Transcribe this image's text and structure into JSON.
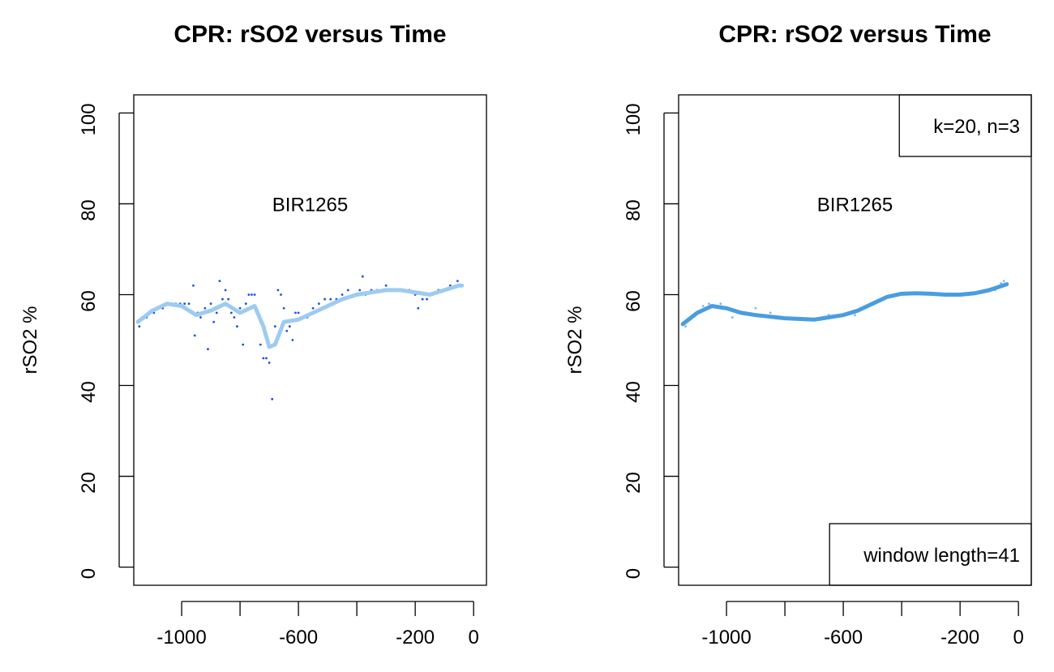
{
  "chart_data": [
    {
      "type": "line",
      "title": "CPR: rSO2 versus Time",
      "ylabel": "rSO2 %",
      "label": "BIR1265",
      "xlim": [
        -1164,
        44
      ],
      "ylim": [
        -4,
        104
      ],
      "xticks": [
        {
          "value": -1000,
          "label": "-1000"
        },
        {
          "value": -800,
          "label": null
        },
        {
          "value": -600,
          "label": "-600"
        },
        {
          "value": -400,
          "label": null
        },
        {
          "value": -200,
          "label": "-200"
        },
        0
      ],
      "yticks": [
        0,
        20,
        40,
        60,
        80,
        100
      ],
      "series": [
        {
          "style": "points",
          "color": "#1f4fe0",
          "x": [
            -1150,
            -1145,
            -1135,
            -1120,
            -1110,
            -1095,
            -1080,
            -1065,
            -1050,
            -1035,
            -1020,
            -1005,
            -990,
            -975,
            -960,
            -955,
            -945,
            -935,
            -920,
            -910,
            -900,
            -890,
            -880,
            -870,
            -860,
            -850,
            -840,
            -830,
            -820,
            -810,
            -800,
            -790,
            -780,
            -770,
            -760,
            -750,
            -740,
            -730,
            -720,
            -710,
            -700,
            -690,
            -680,
            -670,
            -660,
            -650,
            -640,
            -630,
            -620,
            -610,
            -600,
            -590,
            -570,
            -550,
            -530,
            -510,
            -490,
            -470,
            -450,
            -430,
            -410,
            -390,
            -380,
            -370,
            -350,
            -330,
            -300,
            -280,
            -250,
            -220,
            -200,
            -190,
            -175,
            -160,
            -140,
            -120,
            -100,
            -80,
            -60,
            -55,
            -45
          ],
          "values": [
            54,
            53,
            55,
            55,
            56,
            56,
            57,
            57,
            58,
            58,
            58,
            58,
            58,
            58,
            62,
            51,
            56,
            55,
            57,
            48,
            58,
            54,
            56,
            63,
            59,
            61,
            59,
            56,
            55,
            53,
            57,
            49,
            58,
            60,
            60,
            60,
            56,
            49,
            46,
            46,
            45,
            37,
            53,
            61,
            60,
            57,
            52,
            53,
            50,
            56,
            56,
            55,
            55,
            57,
            58,
            59,
            59,
            59,
            60,
            61,
            60,
            61,
            64,
            60,
            61,
            61,
            62,
            61,
            61,
            61,
            60,
            57,
            59,
            59,
            60,
            61,
            61,
            62,
            62,
            63,
            62
          ]
        },
        {
          "style": "line",
          "color": "#9ecbf0",
          "x": [
            -1150,
            -1100,
            -1050,
            -1000,
            -950,
            -900,
            -850,
            -800,
            -750,
            -720,
            -700,
            -680,
            -650,
            -600,
            -550,
            -500,
            -450,
            -400,
            -350,
            -300,
            -250,
            -200,
            -150,
            -100,
            -50,
            -40
          ],
          "values": [
            54,
            56.5,
            58,
            57.5,
            55.5,
            56.5,
            58,
            56,
            57.5,
            53,
            48.5,
            49,
            54,
            54.5,
            56,
            57.5,
            59,
            60,
            60.5,
            61,
            61,
            60.5,
            60,
            61,
            62,
            62
          ]
        }
      ]
    },
    {
      "type": "line",
      "title": "CPR: rSO2 versus Time",
      "ylabel": "rSO2 %",
      "label": "BIR1265",
      "legends": [
        {
          "text": "k=20, n=3",
          "corner": "topright"
        },
        {
          "text": "window length=41",
          "corner": "bottomright"
        }
      ],
      "xlim": [
        -1164,
        44
      ],
      "ylim": [
        -4,
        104
      ],
      "xticks": [
        {
          "value": -1000,
          "label": "-1000"
        },
        {
          "value": -800,
          "label": null
        },
        {
          "value": -600,
          "label": "-600"
        },
        {
          "value": -400,
          "label": null
        },
        {
          "value": -200,
          "label": "-200"
        },
        0
      ],
      "yticks": [
        0,
        20,
        40,
        60,
        80,
        100
      ],
      "series": [
        {
          "style": "points",
          "color": "#7fb8e8",
          "x": [
            -1150,
            -1140,
            -1100,
            -1080,
            -1060,
            -1040,
            -1020,
            -1000,
            -980,
            -950,
            -900,
            -850,
            -650,
            -580,
            -560,
            -80,
            -60,
            -50,
            -45
          ],
          "values": [
            53.5,
            53,
            56,
            57.5,
            58,
            57.5,
            58,
            57,
            55,
            56,
            57,
            56,
            55.5,
            56,
            55.5,
            61,
            62.5,
            63,
            62
          ]
        },
        {
          "style": "line",
          "color": "#4a9de0",
          "x": [
            -1150,
            -1100,
            -1050,
            -1000,
            -950,
            -900,
            -800,
            -700,
            -600,
            -550,
            -500,
            -450,
            -400,
            -350,
            -300,
            -250,
            -200,
            -150,
            -100,
            -40
          ],
          "values": [
            53.5,
            56,
            57.5,
            57,
            56,
            55.5,
            54.8,
            54.5,
            55.5,
            56.5,
            58,
            59.5,
            60.2,
            60.3,
            60.2,
            60,
            60,
            60.3,
            61,
            62.3
          ]
        }
      ]
    }
  ]
}
